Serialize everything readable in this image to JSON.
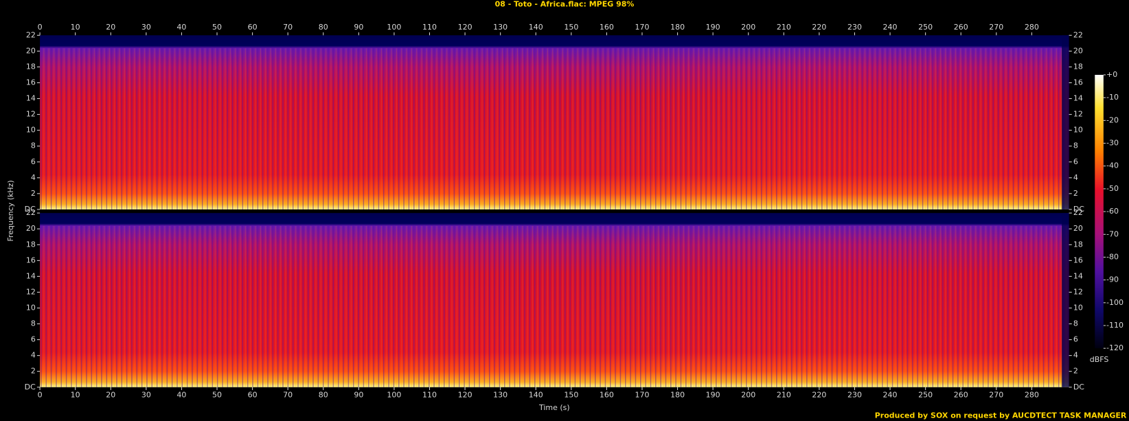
{
  "chart_data": {
    "type": "spectrogram",
    "title": "08 - Toto - Africa.flac: MPEG 98%",
    "x_label": "Time (s)",
    "y_label": "Frequency (kHz)",
    "xlim": [
      0,
      290.5
    ],
    "xticks": [
      0,
      10,
      20,
      30,
      40,
      50,
      60,
      70,
      80,
      90,
      100,
      110,
      120,
      130,
      140,
      150,
      160,
      170,
      180,
      190,
      200,
      210,
      220,
      230,
      240,
      250,
      260,
      270,
      280
    ],
    "ylim": [
      0,
      22
    ],
    "yticks": [
      {
        "value": 0,
        "label": "DC"
      },
      2,
      4,
      6,
      8,
      10,
      12,
      14,
      16,
      18,
      20,
      22
    ],
    "colorbar": {
      "label": "dBFS",
      "lim": [
        -120,
        0
      ],
      "ticks": [
        {
          "value": 0,
          "label": "+0"
        },
        -10,
        -20,
        -30,
        -40,
        -50,
        -60,
        -70,
        -80,
        -90,
        -100,
        -110,
        -120
      ]
    },
    "footer": "Produced by SOX on request by AUCDTECT TASK MANAGER"
  }
}
